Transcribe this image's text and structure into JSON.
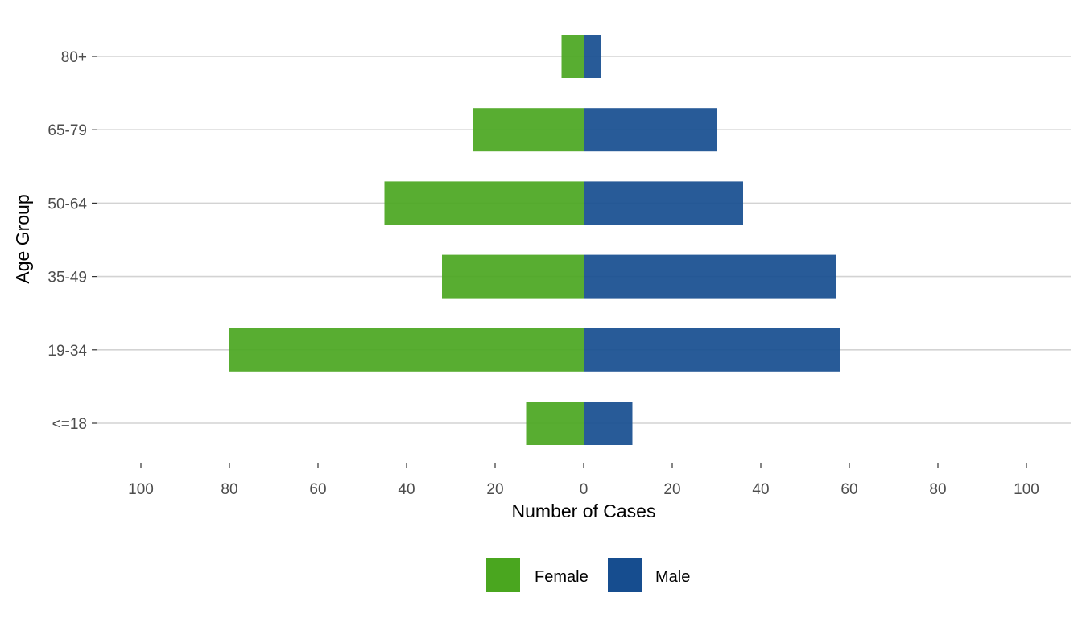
{
  "chart_data": {
    "type": "bar",
    "orientation": "horizontal",
    "layout": "population-pyramid",
    "categories": [
      "<=18",
      "19-34",
      "35-49",
      "50-64",
      "65-79",
      "80+"
    ],
    "series": [
      {
        "name": "Female",
        "color": "#4aa61f",
        "side": "left",
        "values": [
          13,
          80,
          32,
          45,
          25,
          5
        ]
      },
      {
        "name": "Male",
        "color": "#164d8f",
        "side": "right",
        "values": [
          11,
          58,
          57,
          36,
          30,
          4
        ]
      }
    ],
    "xlabel": "Number of Cases",
    "ylabel": "Age Group",
    "xlim": [
      -110,
      110
    ],
    "xticks": [
      -100,
      -80,
      -60,
      -40,
      -20,
      0,
      20,
      40,
      60,
      80,
      100
    ],
    "xtick_labels": [
      "100",
      "80",
      "60",
      "40",
      "20",
      "0",
      "20",
      "40",
      "60",
      "80",
      "100"
    ],
    "grid": "horizontal major",
    "legend_position": "bottom"
  }
}
